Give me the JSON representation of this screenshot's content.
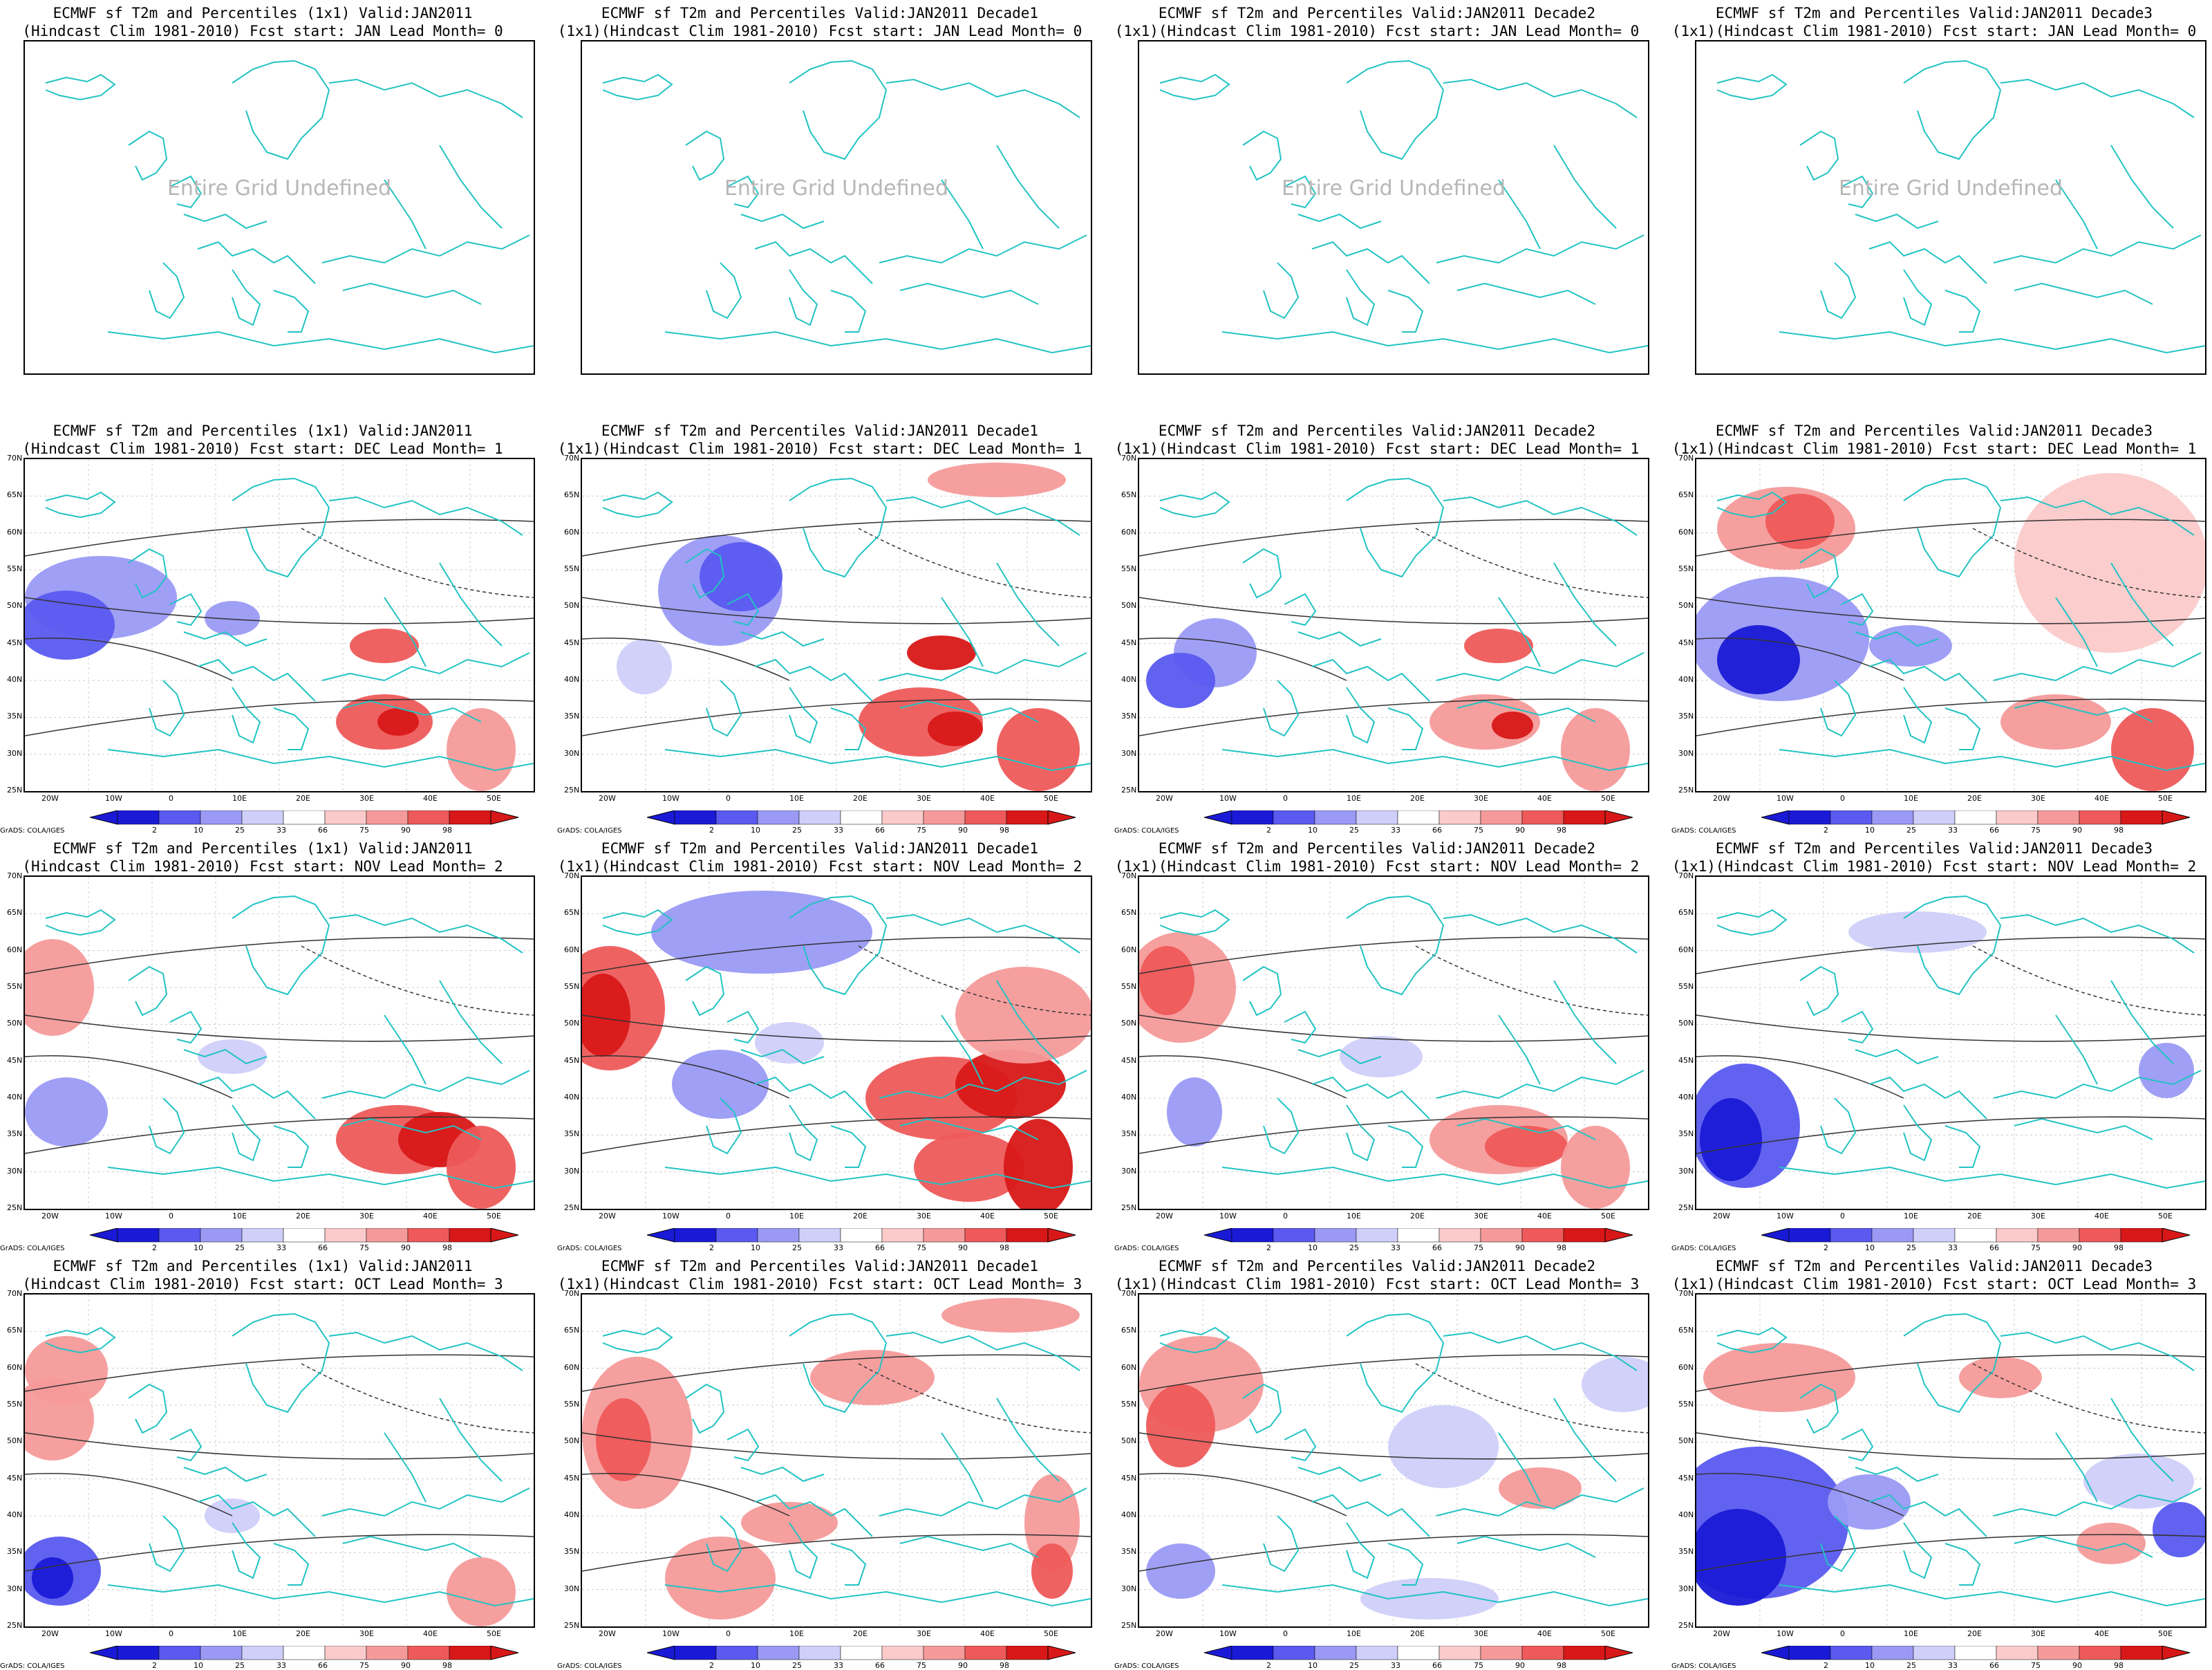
{
  "undefined_text": "Entire Grid Undefined",
  "credit": "GrADS: COLA/IGES",
  "colorbar": {
    "labels": [
      "2",
      "10",
      "25",
      "33",
      "66",
      "75",
      "90",
      "98"
    ],
    "colors": [
      "#1a1ad6",
      "#5a5af0",
      "#9a9af5",
      "#cfcffa",
      "#ffffff",
      "#fbcaca",
      "#f59a9a",
      "#ee5a5a",
      "#d81818"
    ]
  },
  "axes": {
    "x_ticks": [
      "20W",
      "10W",
      "0",
      "10E",
      "20E",
      "30E",
      "40E",
      "50E"
    ],
    "y_ticks": [
      "70N",
      "65N",
      "60N",
      "55N",
      "50N",
      "45N",
      "40N",
      "35N",
      "30N",
      "25N"
    ]
  },
  "rows": [
    {
      "lead": "0",
      "start": "JAN",
      "undefined": true,
      "panels": [
        {
          "l1": "ECMWF sf T2m and Percentiles (1x1) Valid:JAN2011",
          "l2": "(Hindcast Clim 1981-2010) Fcst start: JAN  Lead Month= 0"
        },
        {
          "l1": "ECMWF sf T2m and Percentiles Valid:JAN2011 Decade1",
          "l2": "(1x1)(Hindcast Clim 1981-2010) Fcst start: JAN  Lead Month= 0"
        },
        {
          "l1": "ECMWF sf T2m and Percentiles Valid:JAN2011 Decade2",
          "l2": "(1x1)(Hindcast Clim 1981-2010) Fcst start: JAN  Lead Month= 0"
        },
        {
          "l1": "ECMWF sf T2m and Percentiles Valid:JAN2011 Decade3",
          "l2": "(1x1)(Hindcast Clim 1981-2010) Fcst start: JAN  Lead Month= 0"
        }
      ]
    },
    {
      "lead": "1",
      "start": "DEC",
      "undefined": false,
      "panels": [
        {
          "l1": "ECMWF sf T2m and Percentiles (1x1) Valid:JAN2011",
          "l2": "(Hindcast Clim 1981-2010) Fcst start: DEC  Lead Month= 1"
        },
        {
          "l1": "ECMWF sf T2m and Percentiles Valid:JAN2011 Decade1",
          "l2": "(1x1)(Hindcast Clim 1981-2010) Fcst start: DEC  Lead Month= 1"
        },
        {
          "l1": "ECMWF sf T2m and Percentiles Valid:JAN2011 Decade2",
          "l2": "(1x1)(Hindcast Clim 1981-2010) Fcst start: DEC  Lead Month= 1"
        },
        {
          "l1": "ECMWF sf T2m and Percentiles Valid:JAN2011 Decade3",
          "l2": "(1x1)(Hindcast Clim 1981-2010) Fcst start: DEC  Lead Month= 1"
        }
      ]
    },
    {
      "lead": "2",
      "start": "NOV",
      "undefined": false,
      "panels": [
        {
          "l1": "ECMWF sf T2m and Percentiles (1x1) Valid:JAN2011",
          "l2": "(Hindcast Clim 1981-2010) Fcst start: NOV  Lead Month= 2"
        },
        {
          "l1": "ECMWF sf T2m and Percentiles Valid:JAN2011 Decade1",
          "l2": "(1x1)(Hindcast Clim 1981-2010) Fcst start: NOV  Lead Month= 2"
        },
        {
          "l1": "ECMWF sf T2m and Percentiles Valid:JAN2011 Decade2",
          "l2": "(1x1)(Hindcast Clim 1981-2010) Fcst start: NOV  Lead Month= 2"
        },
        {
          "l1": "ECMWF sf T2m and Percentiles Valid:JAN2011 Decade3",
          "l2": "(1x1)(Hindcast Clim 1981-2010) Fcst start: NOV  Lead Month= 2"
        }
      ]
    },
    {
      "lead": "3",
      "start": "OCT",
      "undefined": false,
      "panels": [
        {
          "l1": "ECMWF sf T2m and Percentiles (1x1) Valid:JAN2011",
          "l2": "(Hindcast Clim 1981-2010) Fcst start: OCT  Lead Month= 3"
        },
        {
          "l1": "ECMWF sf T2m and Percentiles Valid:JAN2011 Decade1",
          "l2": "(1x1)(Hindcast Clim 1981-2010) Fcst start: OCT  Lead Month= 3"
        },
        {
          "l1": "ECMWF sf T2m and Percentiles Valid:JAN2011 Decade2",
          "l2": "(1x1)(Hindcast Clim 1981-2010) Fcst start: OCT  Lead Month= 3"
        },
        {
          "l1": "ECMWF sf T2m and Percentiles Valid:JAN2011 Decade3",
          "l2": "(1x1)(Hindcast Clim 1981-2010) Fcst start: OCT  Lead Month= 3"
        }
      ]
    }
  ]
}
